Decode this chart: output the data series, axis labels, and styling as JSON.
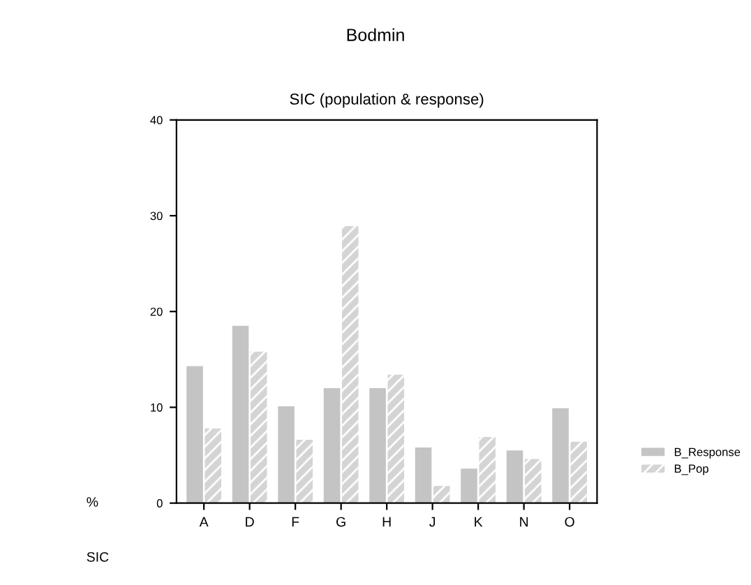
{
  "chart_data": {
    "type": "bar",
    "title": "Bodmin",
    "subtitle": "SIC (population & response)",
    "xlabel": "SIC",
    "ylabel": "%",
    "categories": [
      "A",
      "D",
      "F",
      "G",
      "H",
      "J",
      "K",
      "N",
      "O"
    ],
    "series": [
      {
        "name": "B_Response",
        "color": "#c4c4c4",
        "values": [
          14.3,
          18.5,
          10.1,
          12.0,
          12.0,
          5.8,
          3.6,
          5.5,
          9.9
        ]
      },
      {
        "name": "B_Pop",
        "color": "#d4d4d4",
        "values": [
          7.8,
          15.8,
          6.6,
          28.9,
          13.4,
          1.8,
          6.9,
          4.6,
          6.4
        ]
      }
    ],
    "ylim": [
      0,
      40
    ],
    "yticks": [
      0,
      10,
      20,
      30,
      40
    ],
    "grid": false,
    "legend": "bottom right"
  }
}
